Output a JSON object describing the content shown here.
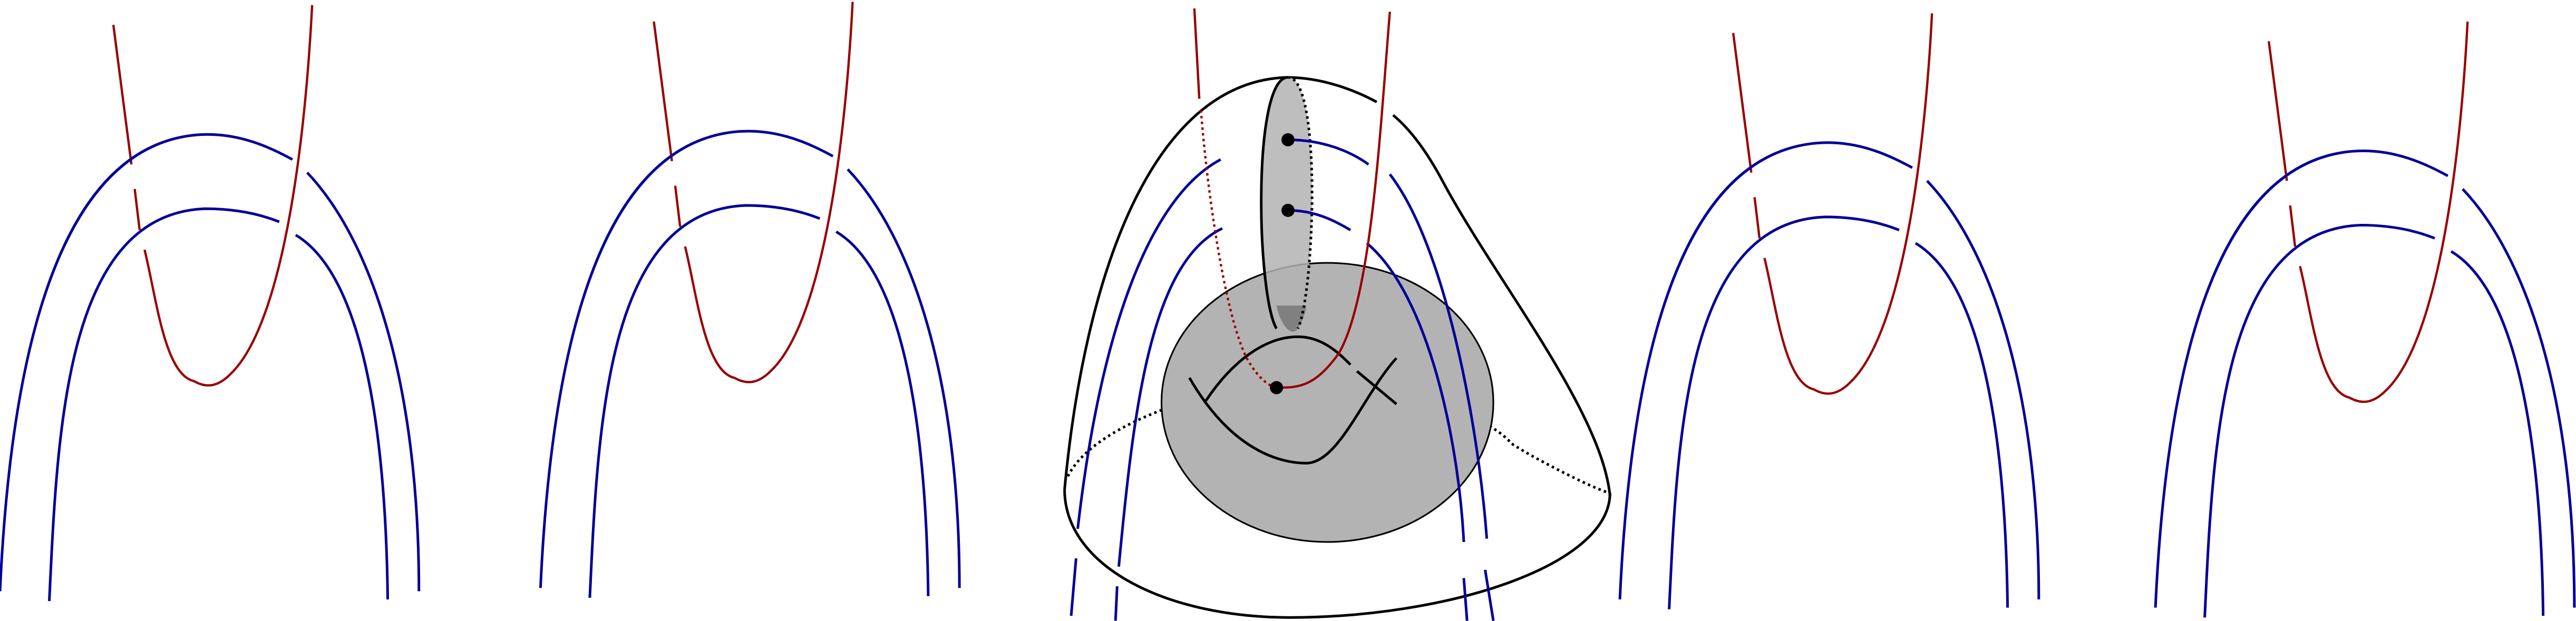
{
  "panels": [
    {
      "id": 1,
      "kind": "crossing-diagram"
    },
    {
      "id": 2,
      "kind": "crossing-diagram"
    },
    {
      "id": 3,
      "kind": "ball-with-disks"
    },
    {
      "id": 4,
      "kind": "crossing-diagram"
    },
    {
      "id": 5,
      "kind": "crossing-diagram"
    }
  ],
  "colors": {
    "red_strand": "#990000",
    "blue_strand": "#000099",
    "disk_fill": "#b3b3b3",
    "outline": "#000000"
  }
}
